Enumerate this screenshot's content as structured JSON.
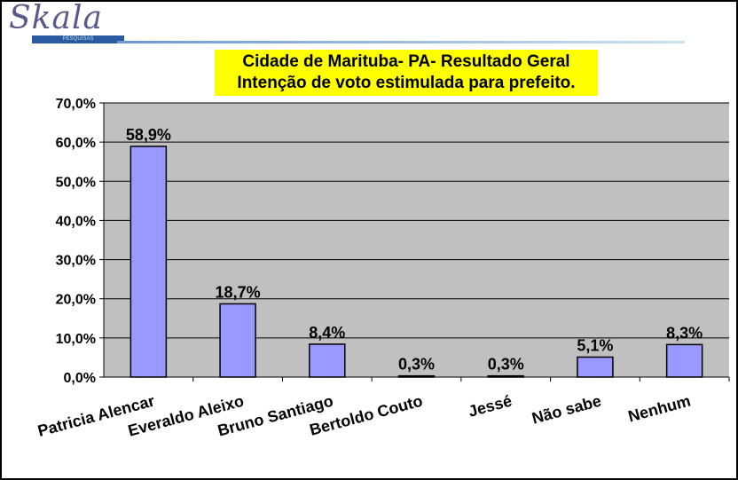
{
  "logo": {
    "name": "Skala",
    "subtitle": "PESQUISAS"
  },
  "chart_data": {
    "type": "bar",
    "title": [
      "Cidade de Marituba- PA- Resultado Geral",
      "Intenção de voto estimulada para prefeito."
    ],
    "categories": [
      "Patricia Alencar",
      "Everaldo Aleixo",
      "Bruno Santiago",
      "Bertoldo Couto",
      "Jessé",
      "Não sabe",
      "Nenhum"
    ],
    "values": [
      58.9,
      18.7,
      8.4,
      0.3,
      0.3,
      5.1,
      8.3
    ],
    "data_labels": [
      "58,9%",
      "18,7%",
      "8,4%",
      "0,3%",
      "0,3%",
      "5,1%",
      "8,3%"
    ],
    "yticks": [
      "0,0%",
      "10,0%",
      "20,0%",
      "30,0%",
      "40,0%",
      "50,0%",
      "60,0%",
      "70,0%"
    ],
    "ylim": [
      0,
      70
    ],
    "grid": true,
    "colors": {
      "bar": "#9999ff",
      "plot_bg": "#c0c0c0",
      "title_bg": "#ffff00"
    }
  }
}
